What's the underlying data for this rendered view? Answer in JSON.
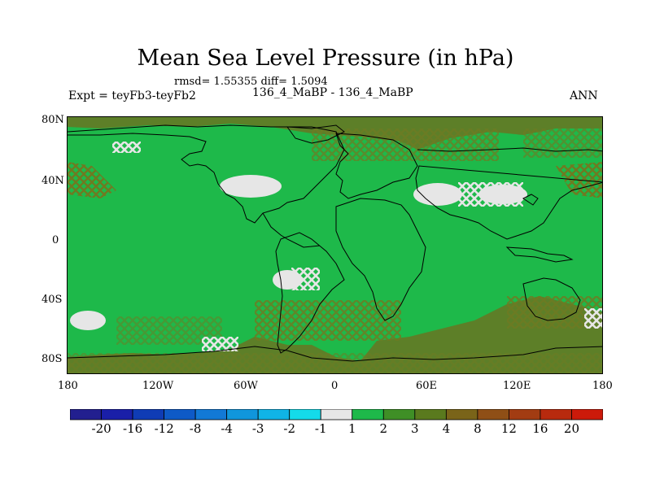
{
  "title": "Mean Sea Level Pressure (in hPa)",
  "stats_line": "rmsd= 1.55355 diff= 1.5094",
  "left_label": "Expt = teyFb3-teyFb2",
  "center_label": "136_4_MaBP - 136_4_MaBP",
  "right_label": "ANN",
  "lat_ticks": [
    "80N",
    "40N",
    "0",
    "40S",
    "80S"
  ],
  "lon_ticks": [
    "180",
    "120W",
    "60W",
    "0",
    "60E",
    "120E",
    "180"
  ],
  "colorbar": {
    "colors": [
      "#221f8f",
      "#1a1fa8",
      "#0f3cb5",
      "#0e5ac7",
      "#1279d6",
      "#1096dc",
      "#10b4e6",
      "#14dbea",
      "#e6e6e6",
      "#1eb94a",
      "#3f8f26",
      "#5a7a1e",
      "#7a6419",
      "#8f4f16",
      "#a23c12",
      "#b82a0e",
      "#cc1a0a"
    ],
    "labels": [
      "-20",
      "-16",
      "-12",
      "-8",
      "-4",
      "-3",
      "-2",
      "-1",
      "1",
      "2",
      "3",
      "4",
      "8",
      "12",
      "16",
      "20"
    ]
  },
  "map_colors": {
    "ocean": "#1eb94a",
    "land_high": "#5d7f28",
    "hatch": "#7a6a2a",
    "low": "#e6e6e6",
    "coast": "#000000"
  }
}
